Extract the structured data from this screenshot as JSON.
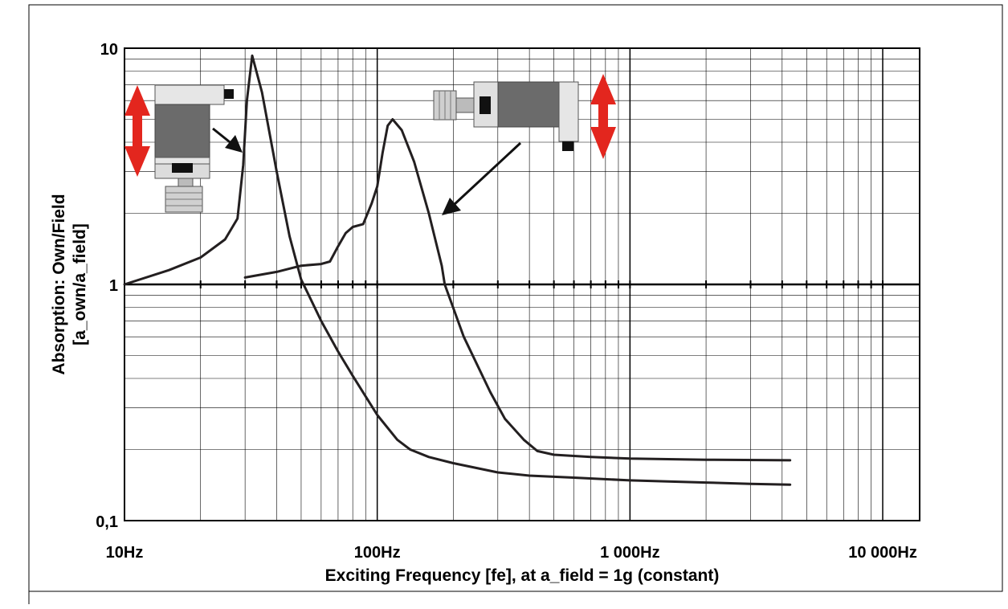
{
  "chart_data": {
    "type": "line",
    "title": "",
    "xlabel": "Exciting Frequency [fe], at a_field = 1g (constant)",
    "ylabel_line1": "Absorption: Own/Field",
    "ylabel_line2": "[a_own/a_field]",
    "x_scale": "log",
    "y_scale": "log",
    "xlim": [
      10,
      14000
    ],
    "ylim": [
      0.1,
      10
    ],
    "grid": true,
    "legend": "none",
    "x_tick_labels": [
      {
        "value": 10,
        "label": "10Hz"
      },
      {
        "value": 100,
        "label": "100Hz"
      },
      {
        "value": 1000,
        "label": "1 000Hz"
      },
      {
        "value": 10000,
        "label": "10 000Hz"
      }
    ],
    "y_tick_labels": [
      {
        "value": 0.1,
        "label": "0,1"
      },
      {
        "value": 1,
        "label": "1"
      },
      {
        "value": 10,
        "label": "10"
      }
    ],
    "series": [
      {
        "color": "#231f20",
        "points": [
          [
            10,
            1.0
          ],
          [
            15,
            1.15
          ],
          [
            20,
            1.3
          ],
          [
            25,
            1.55
          ],
          [
            28,
            1.9
          ],
          [
            29.5,
            3.2
          ],
          [
            30.5,
            6.0
          ],
          [
            32,
            9.3
          ],
          [
            35,
            6.5
          ],
          [
            40,
            3.0
          ],
          [
            45,
            1.6
          ],
          [
            50,
            1.05
          ],
          [
            55,
            0.85
          ],
          [
            60,
            0.7
          ],
          [
            70,
            0.52
          ],
          [
            80,
            0.41
          ],
          [
            100,
            0.28
          ],
          [
            120,
            0.22
          ],
          [
            135,
            0.2
          ],
          [
            160,
            0.186
          ],
          [
            200,
            0.175
          ],
          [
            300,
            0.16
          ],
          [
            400,
            0.155
          ],
          [
            600,
            0.152
          ],
          [
            1000,
            0.148
          ],
          [
            2000,
            0.145
          ],
          [
            3000,
            0.143
          ],
          [
            4300,
            0.142
          ]
        ]
      },
      {
        "color": "#231f20",
        "points": [
          [
            30,
            1.07
          ],
          [
            40,
            1.13
          ],
          [
            50,
            1.2
          ],
          [
            60,
            1.22
          ],
          [
            65,
            1.25
          ],
          [
            70,
            1.45
          ],
          [
            75,
            1.65
          ],
          [
            80,
            1.75
          ],
          [
            88,
            1.8
          ],
          [
            95,
            2.2
          ],
          [
            100,
            2.6
          ],
          [
            105,
            3.6
          ],
          [
            110,
            4.7
          ],
          [
            115,
            5.0
          ],
          [
            125,
            4.5
          ],
          [
            140,
            3.3
          ],
          [
            160,
            2.0
          ],
          [
            180,
            1.2
          ],
          [
            185,
            1.0
          ],
          [
            220,
            0.6
          ],
          [
            280,
            0.35
          ],
          [
            320,
            0.27
          ],
          [
            380,
            0.22
          ],
          [
            430,
            0.197
          ],
          [
            500,
            0.19
          ],
          [
            700,
            0.186
          ],
          [
            1000,
            0.183
          ],
          [
            2000,
            0.181
          ],
          [
            4300,
            0.18
          ]
        ]
      }
    ]
  },
  "annotations": {
    "sensor_vertical_icon": "vertical-sensor-icon",
    "sensor_horizontal_icon": "horizontal-sensor-icon",
    "arrow_color": "#e3261e",
    "sensor_body_color": "#6a6a6a"
  }
}
